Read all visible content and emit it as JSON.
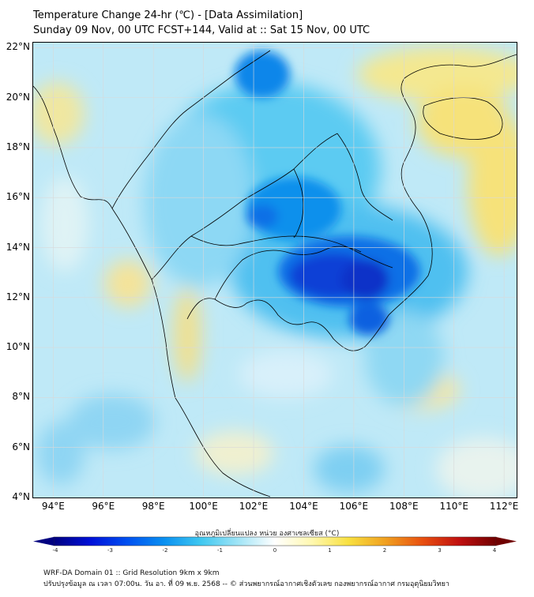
{
  "header": {
    "title": "Temperature Change 24-hr (℃) - [Data Assimilation]",
    "subtitle": "Sunday 09 Nov, 00 UTC FCST+144, Valid at :: Sat 15 Nov, 00 UTC"
  },
  "map": {
    "lat_labels": [
      "22°N",
      "20°N",
      "18°N",
      "16°N",
      "14°N",
      "12°N",
      "10°N",
      "8°N",
      "6°N",
      "4°N"
    ],
    "lon_labels": [
      "94°E",
      "96°E",
      "98°E",
      "100°E",
      "102°E",
      "104°E",
      "106°E",
      "108°E",
      "110°E",
      "112°E"
    ],
    "lat_range": [
      4,
      22.2
    ],
    "lon_range": [
      93.2,
      112.5
    ],
    "field": "24-hr temperature change",
    "units": "°C"
  },
  "colorbar": {
    "title": "อุณหภูมิเปลี่ยนแปลง หน่วย องศาเซลเซียส (°C)",
    "ticks": [
      "-4",
      "-3",
      "-2",
      "-1",
      "0",
      "1",
      "2",
      "3",
      "4"
    ],
    "range": [
      -4,
      4
    ],
    "colors": [
      "#000080",
      "#0010d8",
      "#0050f0",
      "#0a90f0",
      "#40c8f0",
      "#a0e4f6",
      "#ffffff",
      "#fff8b0",
      "#f8e040",
      "#f0a020",
      "#e85010",
      "#c01010",
      "#700000"
    ]
  },
  "footer": {
    "line1": "WRF-DA Domain 01 :: Grid Resolution 9km x 9km",
    "line2": "ปรับปรุงข้อมูล ณ เวลา 07:00น. วัน อา. ที่ 09 พ.ย. 2568 -- © ส่วนพยากรณ์อากาศเชิงตัวเลข กองพยากรณ์อากาศ กรมอุตุนิยมวิทยา"
  }
}
